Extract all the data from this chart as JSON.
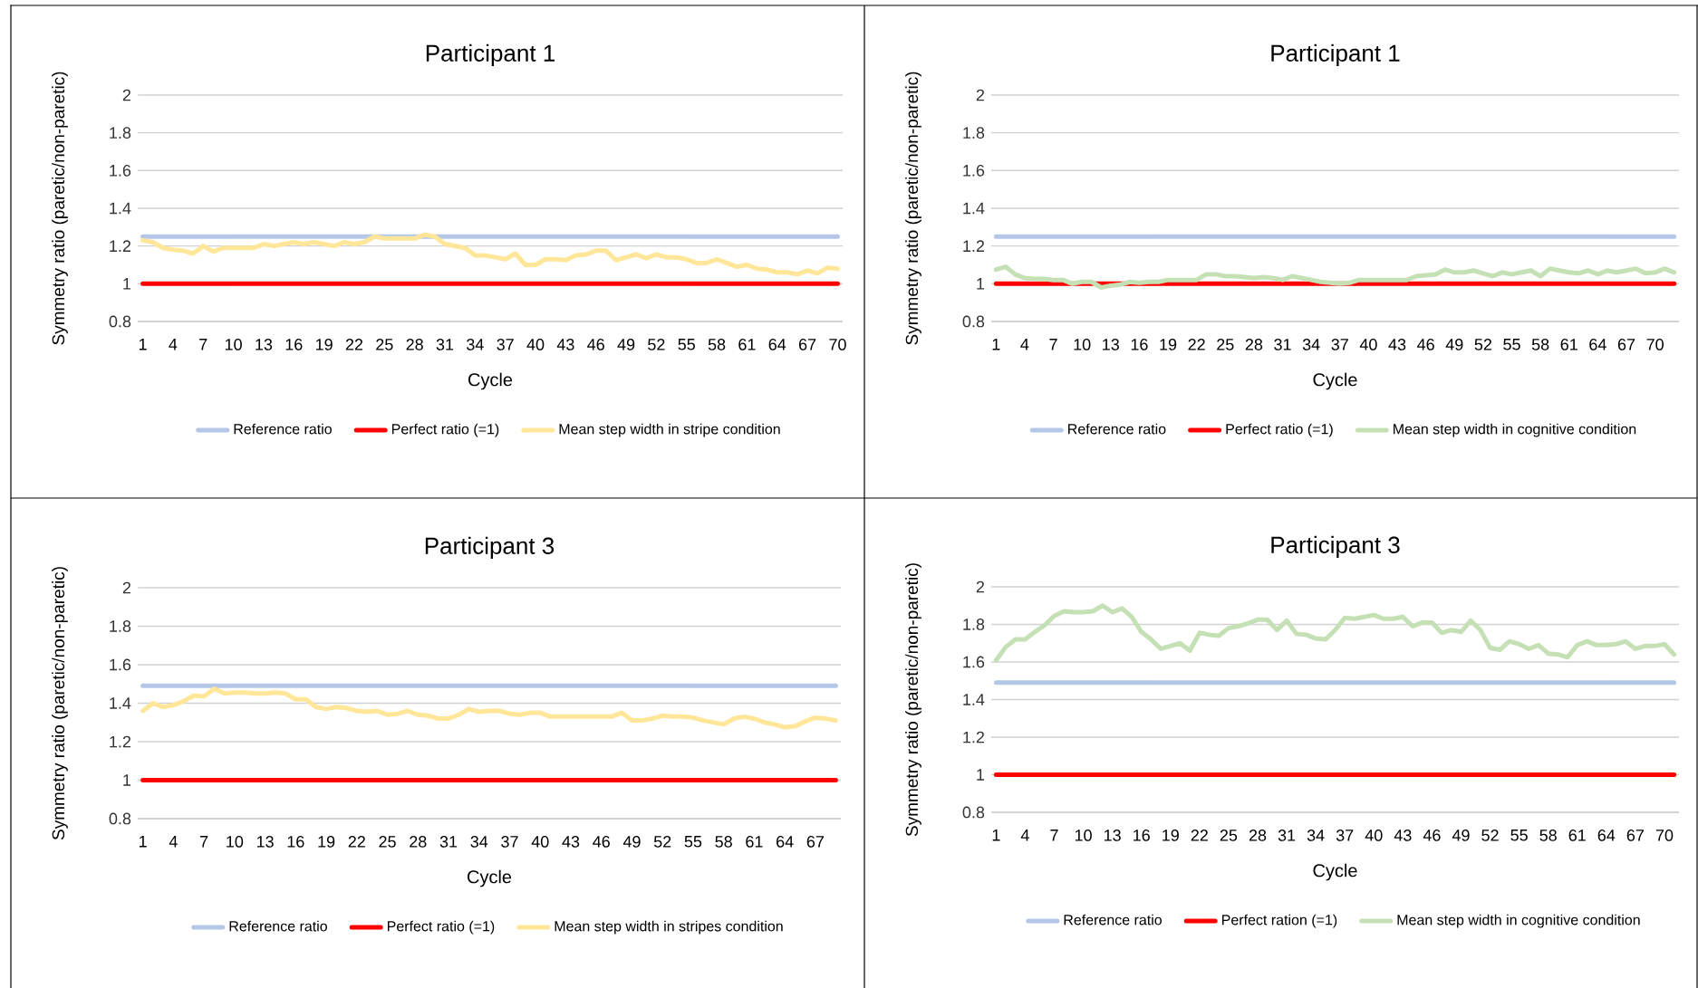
{
  "chart_data": [
    {
      "type": "line",
      "title": "Participant 1",
      "xlabel": "Cycle",
      "ylabel": "Symmetry ratio (paretic/non-paretic)",
      "grid": "y",
      "legend": "bottom",
      "x": [
        1,
        2,
        3,
        4,
        5,
        6,
        7,
        8,
        9,
        10,
        11,
        12,
        13,
        14,
        15,
        16,
        17,
        18,
        19,
        20,
        21,
        22,
        23,
        24,
        25,
        26,
        27,
        28,
        29,
        30,
        31,
        32,
        33,
        34,
        35,
        36,
        37,
        38,
        39,
        40,
        41,
        42,
        43,
        44,
        45,
        46,
        47,
        48,
        49,
        50,
        51,
        52,
        53,
        54,
        55,
        56,
        57,
        58,
        59,
        60,
        61,
        62,
        63,
        64,
        65,
        66,
        67,
        68,
        69,
        70
      ],
      "xlim": [
        0.5,
        70.5
      ],
      "xticks": [
        1,
        4,
        7,
        10,
        13,
        16,
        19,
        22,
        25,
        28,
        31,
        34,
        37,
        40,
        43,
        46,
        49,
        52,
        55,
        58,
        61,
        64,
        67,
        70
      ],
      "ylim": [
        0.8,
        2
      ],
      "yticks": [
        0.8,
        1,
        1.2,
        1.4,
        1.6,
        1.8,
        2
      ],
      "series": [
        {
          "name": "Reference ratio",
          "color": "#b4c7e7",
          "x": [
            1,
            70
          ],
          "values": [
            1.25,
            1.25
          ]
        },
        {
          "name": "Perfect ratio (=1)",
          "color": "#ff0000",
          "x": [
            1,
            70
          ],
          "values": [
            1,
            1
          ]
        },
        {
          "name": "Mean step width in stripe condition",
          "color": "#ffe699",
          "values": [
            1.23,
            1.22,
            1.19,
            1.18,
            1.175,
            1.16,
            1.2,
            1.17,
            1.19,
            1.19,
            1.19,
            1.19,
            1.21,
            1.2,
            1.21,
            1.22,
            1.21,
            1.22,
            1.21,
            1.2,
            1.22,
            1.21,
            1.22,
            1.25,
            1.24,
            1.24,
            1.24,
            1.24,
            1.26,
            1.25,
            1.21,
            1.2,
            1.19,
            1.15,
            1.15,
            1.14,
            1.13,
            1.16,
            1.1,
            1.1,
            1.13,
            1.13,
            1.125,
            1.15,
            1.155,
            1.175,
            1.175,
            1.125,
            1.14,
            1.155,
            1.135,
            1.155,
            1.14,
            1.14,
            1.13,
            1.11,
            1.11,
            1.13,
            1.11,
            1.09,
            1.1,
            1.08,
            1.075,
            1.06,
            1.06,
            1.05,
            1.07,
            1.055,
            1.085,
            1.08
          ]
        }
      ]
    },
    {
      "type": "line",
      "title": "Participant 1",
      "xlabel": "Cycle",
      "ylabel": "Symmetry ratio (paretic/non-paretic)",
      "grid": "y",
      "legend": "bottom",
      "x": [
        1,
        2,
        3,
        4,
        5,
        6,
        7,
        8,
        9,
        10,
        11,
        12,
        13,
        14,
        15,
        16,
        17,
        18,
        19,
        20,
        21,
        22,
        23,
        24,
        25,
        26,
        27,
        28,
        29,
        30,
        31,
        32,
        33,
        34,
        35,
        36,
        37,
        38,
        39,
        40,
        41,
        42,
        43,
        44,
        45,
        46,
        47,
        48,
        49,
        50,
        51,
        52,
        53,
        54,
        55,
        56,
        57,
        58,
        59,
        60,
        61,
        62,
        63,
        64,
        65,
        66,
        67,
        68,
        69,
        70,
        71,
        72
      ],
      "xlim": [
        0.5,
        72.5
      ],
      "xticks": [
        1,
        4,
        7,
        10,
        13,
        16,
        19,
        22,
        25,
        28,
        31,
        34,
        37,
        40,
        43,
        46,
        49,
        52,
        55,
        58,
        61,
        64,
        67,
        70
      ],
      "ylim": [
        0.8,
        2
      ],
      "yticks": [
        0.8,
        1,
        1.2,
        1.4,
        1.6,
        1.8,
        2
      ],
      "series": [
        {
          "name": "Reference ratio",
          "color": "#b4c7e7",
          "x": [
            1,
            72
          ],
          "values": [
            1.25,
            1.25
          ]
        },
        {
          "name": "Perfect ratio (=1)",
          "color": "#ff0000",
          "x": [
            1,
            72
          ],
          "values": [
            1,
            1
          ]
        },
        {
          "name": "Mean step width in cognitive condition",
          "color": "#c5e0b4",
          "values": [
            1.075,
            1.09,
            1.05,
            1.03,
            1.025,
            1.025,
            1.02,
            1.02,
            1.0,
            1.01,
            1.01,
            0.98,
            0.99,
            0.995,
            1.01,
            1.005,
            1.01,
            1.01,
            1.02,
            1.02,
            1.02,
            1.02,
            1.05,
            1.05,
            1.04,
            1.04,
            1.035,
            1.03,
            1.035,
            1.03,
            1.02,
            1.04,
            1.03,
            1.02,
            1.01,
            1.005,
            1.0,
            1.005,
            1.02,
            1.02,
            1.02,
            1.02,
            1.02,
            1.02,
            1.04,
            1.045,
            1.05,
            1.075,
            1.06,
            1.06,
            1.07,
            1.055,
            1.04,
            1.06,
            1.05,
            1.06,
            1.07,
            1.04,
            1.08,
            1.07,
            1.06,
            1.055,
            1.07,
            1.05,
            1.07,
            1.06,
            1.07,
            1.08,
            1.055,
            1.06,
            1.08,
            1.06
          ]
        }
      ]
    },
    {
      "type": "line",
      "title": "Participant 3",
      "xlabel": "Cycle",
      "ylabel": "Symmetry ratio (paretic/non-paretic)",
      "grid": "y",
      "legend": "bottom",
      "x": [
        1,
        2,
        3,
        4,
        5,
        6,
        7,
        8,
        9,
        10,
        11,
        12,
        13,
        14,
        15,
        16,
        17,
        18,
        19,
        20,
        21,
        22,
        23,
        24,
        25,
        26,
        27,
        28,
        29,
        30,
        31,
        32,
        33,
        34,
        35,
        36,
        37,
        38,
        39,
        40,
        41,
        42,
        43,
        44,
        45,
        46,
        47,
        48,
        49,
        50,
        51,
        52,
        53,
        54,
        55,
        56,
        57,
        58,
        59,
        60,
        61,
        62,
        63,
        64,
        65,
        66,
        67,
        68,
        69
      ],
      "xlim": [
        0.5,
        69.5
      ],
      "xticks": [
        1,
        4,
        7,
        10,
        13,
        16,
        19,
        22,
        25,
        28,
        31,
        34,
        37,
        40,
        43,
        46,
        49,
        52,
        55,
        58,
        61,
        64,
        67
      ],
      "ylim": [
        0.8,
        2
      ],
      "yticks": [
        0.8,
        1,
        1.2,
        1.4,
        1.6,
        1.8,
        2
      ],
      "series": [
        {
          "name": "Reference ratio",
          "color": "#b4c7e7",
          "x": [
            1,
            69
          ],
          "values": [
            1.49,
            1.49
          ]
        },
        {
          "name": "Perfect ratio (=1)",
          "color": "#ff0000",
          "x": [
            1,
            69
          ],
          "values": [
            1,
            1
          ]
        },
        {
          "name": "Mean step width in stripes condition",
          "color": "#ffe699",
          "values": [
            1.36,
            1.4,
            1.38,
            1.39,
            1.41,
            1.44,
            1.435,
            1.475,
            1.45,
            1.455,
            1.455,
            1.45,
            1.45,
            1.455,
            1.45,
            1.42,
            1.42,
            1.38,
            1.37,
            1.38,
            1.375,
            1.36,
            1.355,
            1.36,
            1.34,
            1.345,
            1.36,
            1.34,
            1.335,
            1.32,
            1.32,
            1.34,
            1.37,
            1.355,
            1.36,
            1.36,
            1.345,
            1.34,
            1.35,
            1.35,
            1.33,
            1.33,
            1.33,
            1.33,
            1.33,
            1.33,
            1.33,
            1.35,
            1.31,
            1.31,
            1.32,
            1.335,
            1.33,
            1.33,
            1.325,
            1.31,
            1.3,
            1.29,
            1.32,
            1.33,
            1.32,
            1.3,
            1.29,
            1.275,
            1.28,
            1.305,
            1.325,
            1.32,
            1.31
          ]
        }
      ]
    },
    {
      "type": "line",
      "title": "Participant 3",
      "xlabel": "Cycle",
      "ylabel": "Symmetry ratio (paretic/non-paretic)",
      "grid": "y",
      "legend": "bottom",
      "x": [
        1,
        2,
        3,
        4,
        5,
        6,
        7,
        8,
        9,
        10,
        11,
        12,
        13,
        14,
        15,
        16,
        17,
        18,
        19,
        20,
        21,
        22,
        23,
        24,
        25,
        26,
        27,
        28,
        29,
        30,
        31,
        32,
        33,
        34,
        35,
        36,
        37,
        38,
        39,
        40,
        41,
        42,
        43,
        44,
        45,
        46,
        47,
        48,
        49,
        50,
        51,
        52,
        53,
        54,
        55,
        56,
        57,
        58,
        59,
        60,
        61,
        62,
        63,
        64,
        65,
        66,
        67,
        68,
        69,
        70,
        71
      ],
      "xlim": [
        0.5,
        71.5
      ],
      "xticks": [
        1,
        4,
        7,
        10,
        13,
        16,
        19,
        22,
        25,
        28,
        31,
        34,
        37,
        40,
        43,
        46,
        49,
        52,
        55,
        58,
        61,
        64,
        67,
        70
      ],
      "ylim": [
        0.8,
        2
      ],
      "yticks": [
        0.8,
        1,
        1.2,
        1.4,
        1.6,
        1.8,
        2
      ],
      "series": [
        {
          "name": "Reference ratio",
          "color": "#b4c7e7",
          "x": [
            1,
            71
          ],
          "values": [
            1.49,
            1.49
          ]
        },
        {
          "name": "Perfect ration (=1)",
          "color": "#ff0000",
          "x": [
            1,
            71
          ],
          "values": [
            1,
            1
          ]
        },
        {
          "name": "Mean step width in cognitive condition",
          "color": "#c5e0b4",
          "values": [
            1.61,
            1.68,
            1.72,
            1.72,
            1.76,
            1.795,
            1.845,
            1.87,
            1.865,
            1.865,
            1.87,
            1.9,
            1.865,
            1.885,
            1.84,
            1.76,
            1.72,
            1.67,
            1.685,
            1.7,
            1.66,
            1.755,
            1.745,
            1.74,
            1.78,
            1.79,
            1.805,
            1.825,
            1.825,
            1.77,
            1.82,
            1.75,
            1.745,
            1.725,
            1.72,
            1.77,
            1.835,
            1.83,
            1.84,
            1.85,
            1.83,
            1.83,
            1.84,
            1.79,
            1.81,
            1.81,
            1.755,
            1.77,
            1.76,
            1.82,
            1.77,
            1.675,
            1.665,
            1.71,
            1.695,
            1.67,
            1.69,
            1.645,
            1.64,
            1.625,
            1.69,
            1.71,
            1.69,
            1.69,
            1.695,
            1.71,
            1.67,
            1.685,
            1.685,
            1.695,
            1.64
          ]
        }
      ]
    }
  ]
}
